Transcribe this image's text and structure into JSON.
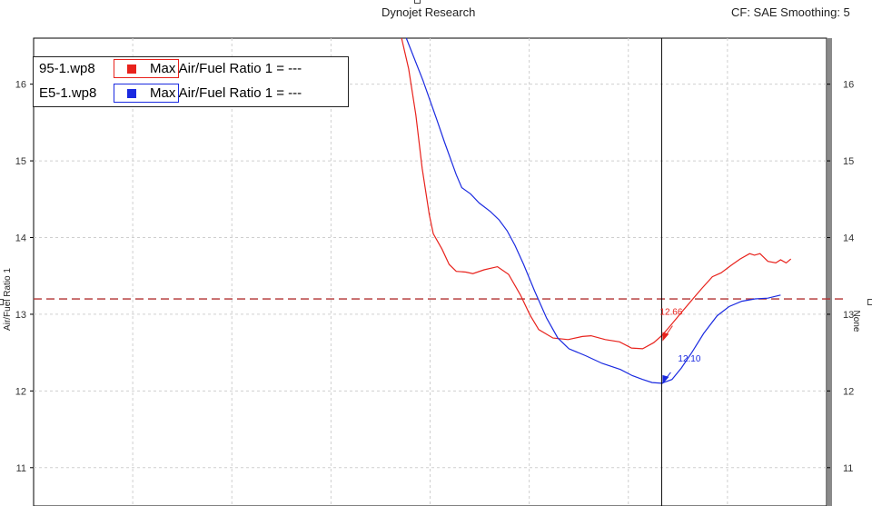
{
  "header": {
    "title": "Dynojet Research",
    "cf_info": "CF: SAE Smoothing: 5"
  },
  "legend": [
    {
      "file": "95-1.wp8",
      "label": "Max Air/Fuel Ratio 1 = ---",
      "color": "#e8221c"
    },
    {
      "file": "E5-1.wp8",
      "label": "Max Air/Fuel Ratio 1 = ---",
      "color": "#1a2ae0"
    }
  ],
  "colors": {
    "reference_line": "#b03030",
    "cursor_line": "#000000",
    "grid": "#cfcfcf",
    "right_bar": "#8a8a8a"
  },
  "chart_data": {
    "type": "line",
    "ylabel": "Air/Fuel Ratio 1",
    "ylabel_right": "None",
    "ylim": [
      10.5,
      16.6
    ],
    "yticks": [
      "11",
      "12",
      "13",
      "14",
      "15",
      "16"
    ],
    "xlim": [
      0,
      100
    ],
    "grid": true,
    "legend_position": "top-left",
    "reference_line": 13.2,
    "cursor_x": 79.2,
    "cursor_labels": [
      {
        "series": "95-1.wp8",
        "value": 12.66,
        "text": "12.66"
      },
      {
        "series": "E5-1.wp8",
        "value": 12.1,
        "text": "12.10"
      }
    ],
    "series": [
      {
        "name": "95-1.wp8",
        "color": "#e8221c",
        "x": [
          46.4,
          47.3,
          48.2,
          49,
          49.9,
          50.4,
          51.5,
          52.4,
          53.3,
          54.5,
          55.4,
          56.8,
          58.5,
          59.9,
          61.4,
          62.6,
          63.7,
          65.5,
          67.4,
          69.2,
          70.3,
          72.1,
          73.9,
          75.4,
          76.8,
          78.2,
          79.2,
          80.3,
          81.9,
          84.2,
          85.6,
          86.7,
          88,
          89.1,
          90.3,
          90.9,
          91.6,
          92.6,
          93.6,
          94.2,
          94.9,
          95.5
        ],
        "y": [
          16.6,
          16.2,
          15.6,
          14.9,
          14.3,
          14.05,
          13.85,
          13.65,
          13.56,
          13.55,
          13.53,
          13.58,
          13.62,
          13.52,
          13.25,
          12.99,
          12.8,
          12.69,
          12.67,
          12.71,
          12.72,
          12.67,
          12.64,
          12.56,
          12.55,
          12.63,
          12.72,
          12.85,
          13.05,
          13.33,
          13.49,
          13.54,
          13.64,
          13.72,
          13.79,
          13.77,
          13.79,
          13.69,
          13.67,
          13.71,
          13.67,
          13.72
        ]
      },
      {
        "name": "E5-1.wp8",
        "color": "#1a2ae0",
        "x": [
          47,
          49.1,
          50.8,
          51.8,
          53.3,
          54,
          55.1,
          56.2,
          57.6,
          58.7,
          59.7,
          60.7,
          61.8,
          63.2,
          64.7,
          66.1,
          67.5,
          69.6,
          71.7,
          74,
          75.5,
          76.8,
          78,
          79.2,
          80.5,
          81.7,
          83,
          84.5,
          86.2,
          87.7,
          89.3,
          91,
          92.6,
          94.2
        ],
        "y": [
          16.6,
          16.05,
          15.55,
          15.25,
          14.82,
          14.65,
          14.57,
          14.45,
          14.34,
          14.23,
          14.09,
          13.9,
          13.65,
          13.3,
          12.95,
          12.69,
          12.55,
          12.46,
          12.36,
          12.28,
          12.2,
          12.15,
          12.11,
          12.1,
          12.15,
          12.3,
          12.5,
          12.75,
          12.98,
          13.1,
          13.17,
          13.2,
          13.21,
          13.25
        ]
      }
    ]
  }
}
